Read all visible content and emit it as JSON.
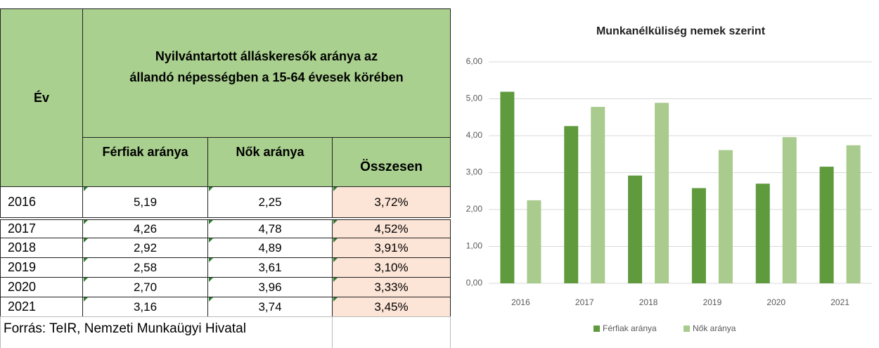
{
  "table": {
    "header": {
      "year": "Év",
      "title": [
        "Nyilvántartott álláskeresők aránya az",
        "állandó népességben a 15-64 évesek körében"
      ],
      "columns": [
        "Férfiak aránya",
        "Nők aránya",
        "Összesen"
      ]
    },
    "rows": [
      [
        "2016",
        "5,19",
        "2,25",
        "3,72%"
      ],
      [
        "2017",
        "4,26",
        "4,78",
        "4,52%"
      ],
      [
        "2018",
        "2,92",
        "4,89",
        "3,91%"
      ],
      [
        "2019",
        "2,58",
        "3,61",
        "3,10%"
      ],
      [
        "2020",
        "2,70",
        "3,96",
        "3,33%"
      ],
      [
        "2021",
        "3,16",
        "3,74",
        "3,45%"
      ]
    ],
    "source": "Forrás: TeIR, Nemzeti Munkaügyi Hivatal"
  },
  "chart_data": {
    "type": "bar",
    "title": "Munkanélküliség nemek szerint",
    "categories": [
      "2016",
      "2017",
      "2018",
      "2019",
      "2020",
      "2021"
    ],
    "series": [
      {
        "name": "Férfiak aránya",
        "color": "#5f9a3d",
        "values": [
          5.19,
          4.26,
          2.92,
          2.58,
          2.7,
          3.16
        ]
      },
      {
        "name": "Nők aránya",
        "color": "#a9cb8d",
        "values": [
          2.25,
          4.78,
          4.89,
          3.61,
          3.96,
          3.74
        ]
      }
    ],
    "ylim": [
      0,
      6
    ],
    "yticks": [
      {
        "value": 0,
        "label": "0,00"
      },
      {
        "value": 1,
        "label": "1,00"
      },
      {
        "value": 2,
        "label": "2,00"
      },
      {
        "value": 3,
        "label": "3,00"
      },
      {
        "value": 4,
        "label": "4,00"
      },
      {
        "value": 5,
        "label": "5,00"
      },
      {
        "value": 6,
        "label": "6,00"
      }
    ],
    "grid": true,
    "legend": "bottom"
  }
}
